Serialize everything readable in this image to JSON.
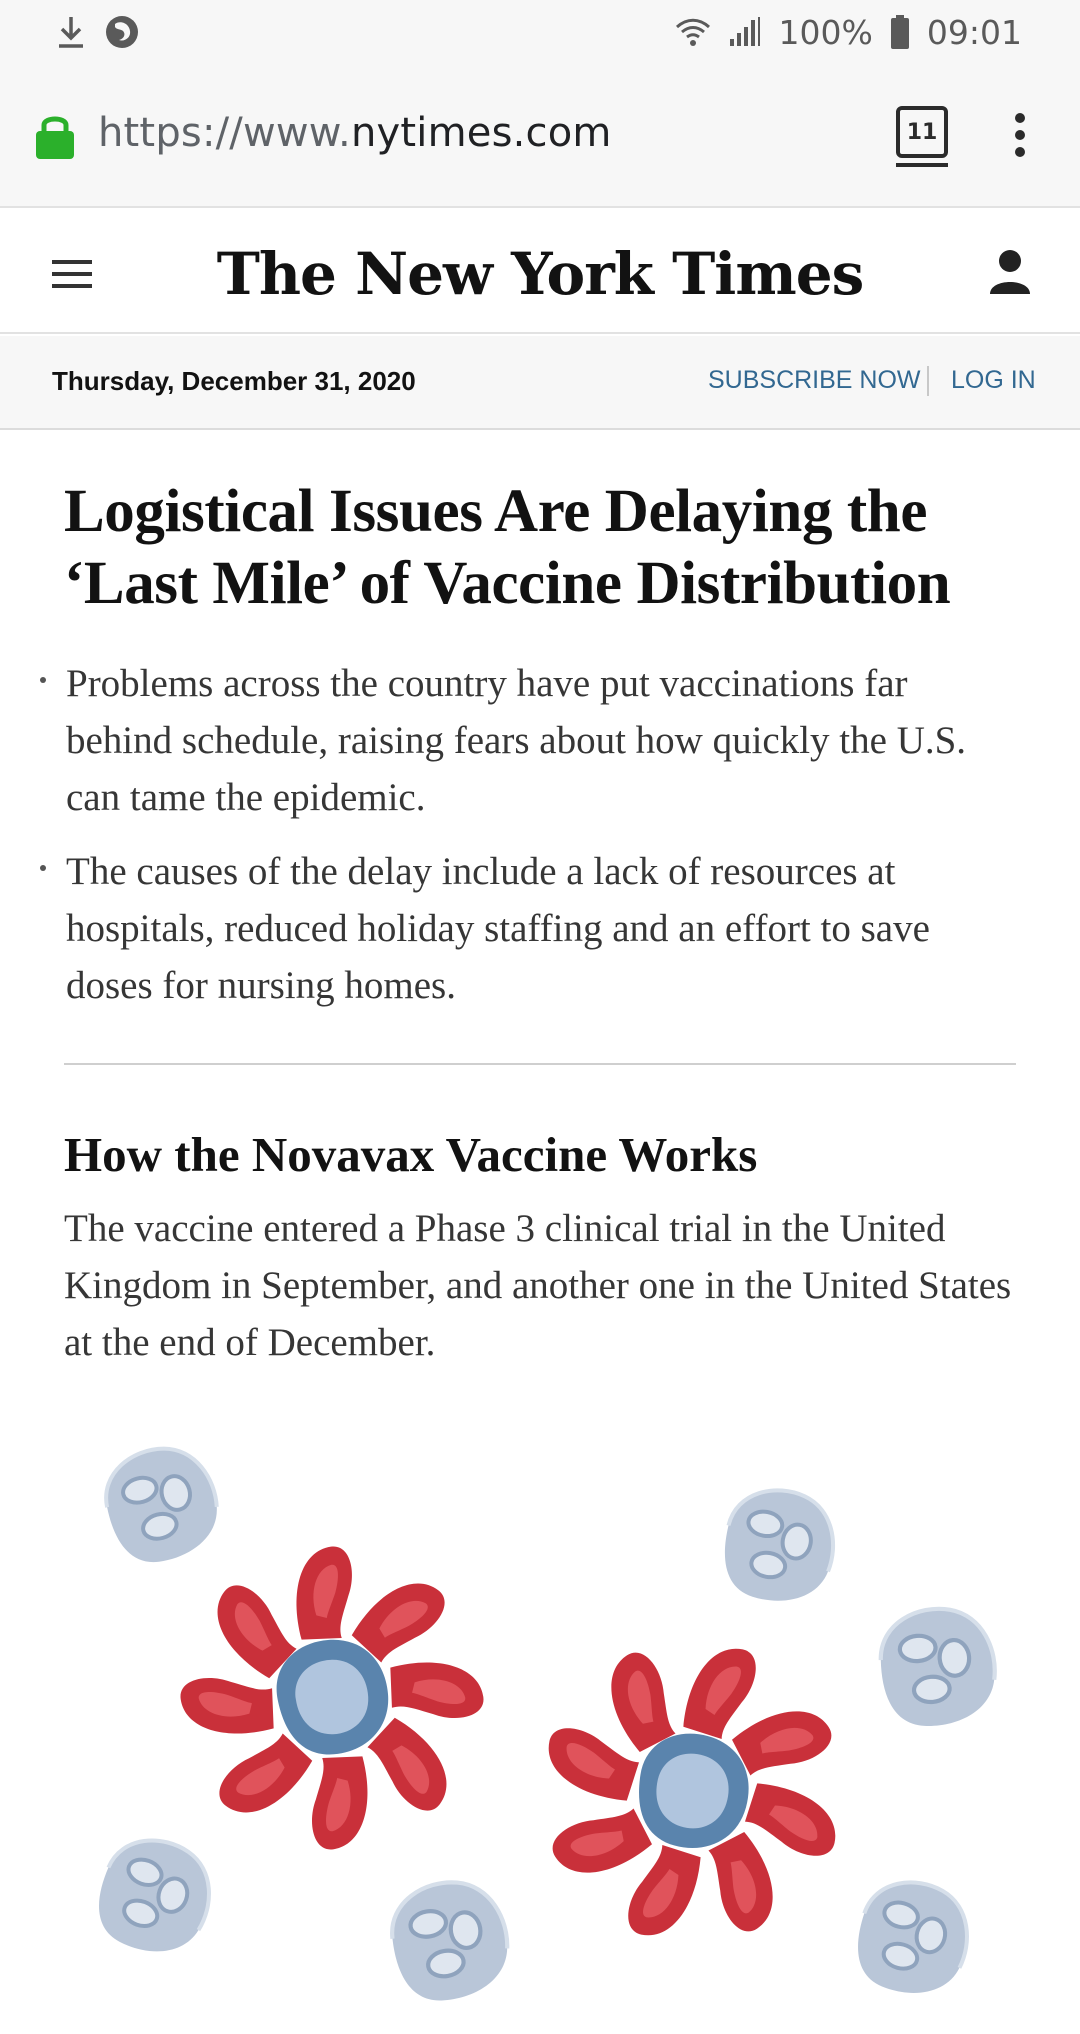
{
  "status_bar": {
    "battery": "100%",
    "time": "09:01"
  },
  "browser": {
    "url_prefix": "https://www.",
    "url_domain": "nytimes.com",
    "tab_count": "11"
  },
  "header": {
    "logo": "The New York Times"
  },
  "date_bar": {
    "date": "Thursday, December 31, 2020",
    "subscribe_label": "SUBSCRIBE NOW",
    "login_label": "LOG IN"
  },
  "article1": {
    "headline": "Logistical Issues Are Delaying the ‘Last Mile’ of Vaccine Distribution",
    "bullets": [
      "Problems across the country have put vaccinations far behind schedule, raising fears about how quickly the U.S. can tame the epidemic.",
      "The causes of the delay include a lack of resources at hospitals, reduced holiday staffing and an effort to save doses for nursing homes."
    ]
  },
  "article2": {
    "headline": "How the Novavax Vaccine Works",
    "summary": "The vaccine entered a Phase 3 clinical trial in the United Kingdom in September, and another one in the United States at the end of December."
  },
  "icons": {
    "download": "download-icon",
    "firefox": "firefox-icon",
    "wifi": "wifi-icon",
    "signal": "signal-icon",
    "battery": "battery-icon",
    "lock": "lock-icon",
    "menu": "menu-icon",
    "user": "user-icon",
    "kebab": "kebab-menu-icon"
  },
  "colors": {
    "lock_green": "#2bb02b",
    "link_blue": "#326891",
    "spike_red": "#c9303a",
    "core_blue": "#5a84ad",
    "cell_gray": "#b9c6d8"
  }
}
